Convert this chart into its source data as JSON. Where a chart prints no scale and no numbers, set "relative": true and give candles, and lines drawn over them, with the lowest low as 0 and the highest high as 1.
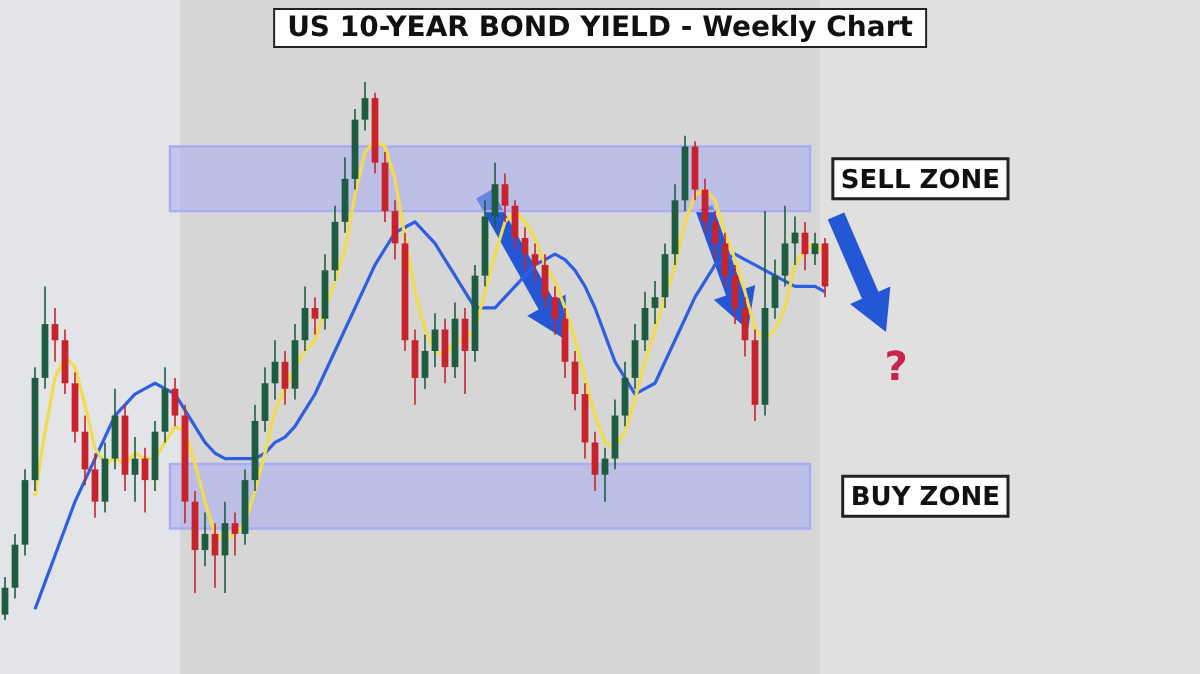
{
  "chart_data": {
    "type": "candlestick",
    "title": "US 10-YEAR BOND YIELD - Weekly Chart",
    "relative": true,
    "categories": [
      null,
      null,
      null,
      null,
      null,
      null,
      null,
      null,
      null,
      null,
      null,
      null,
      null,
      null,
      null,
      null,
      null,
      null,
      null,
      null,
      null,
      null,
      null,
      null,
      null,
      null,
      null,
      null,
      null,
      null,
      null,
      null,
      null,
      null,
      null,
      null,
      null,
      null,
      null,
      null,
      null,
      null,
      null,
      null,
      null,
      null,
      null,
      null,
      null,
      null,
      null,
      null,
      null,
      null,
      null,
      null,
      null,
      null,
      null,
      null,
      null,
      null,
      null,
      null,
      null,
      null,
      null,
      null,
      null,
      null,
      null,
      null,
      null,
      null,
      null,
      null,
      null,
      null,
      null,
      null,
      null,
      null,
      null,
      null,
      null,
      null,
      null,
      null,
      null,
      null,
      null,
      null,
      null,
      null,
      null,
      null,
      null,
      null,
      null,
      null,
      null,
      null,
      null,
      null,
      null,
      null,
      null,
      null,
      null,
      null,
      null,
      null,
      null,
      null,
      null,
      null
    ],
    "ohlc": [
      [
        0.01,
        0.08,
        0.0,
        0.06
      ],
      [
        0.06,
        0.16,
        0.04,
        0.14
      ],
      [
        0.14,
        0.28,
        0.12,
        0.26
      ],
      [
        0.26,
        0.47,
        0.24,
        0.45
      ],
      [
        0.45,
        0.62,
        0.43,
        0.55
      ],
      [
        0.55,
        0.58,
        0.48,
        0.52
      ],
      [
        0.52,
        0.54,
        0.42,
        0.44
      ],
      [
        0.44,
        0.46,
        0.33,
        0.35
      ],
      [
        0.35,
        0.38,
        0.25,
        0.28
      ],
      [
        0.28,
        0.31,
        0.19,
        0.22
      ],
      [
        0.22,
        0.33,
        0.2,
        0.3
      ],
      [
        0.3,
        0.43,
        0.28,
        0.38
      ],
      [
        0.38,
        0.4,
        0.24,
        0.27
      ],
      [
        0.27,
        0.34,
        0.22,
        0.3
      ],
      [
        0.3,
        0.32,
        0.2,
        0.26
      ],
      [
        0.26,
        0.37,
        0.24,
        0.35
      ],
      [
        0.35,
        0.47,
        0.33,
        0.43
      ],
      [
        0.43,
        0.45,
        0.36,
        0.38
      ],
      [
        0.38,
        0.4,
        0.18,
        0.22
      ],
      [
        0.22,
        0.24,
        0.05,
        0.13
      ],
      [
        0.13,
        0.2,
        0.1,
        0.16
      ],
      [
        0.16,
        0.18,
        0.06,
        0.12
      ],
      [
        0.12,
        0.22,
        0.05,
        0.18
      ],
      [
        0.18,
        0.2,
        0.12,
        0.16
      ],
      [
        0.16,
        0.28,
        0.14,
        0.26
      ],
      [
        0.26,
        0.4,
        0.24,
        0.37
      ],
      [
        0.37,
        0.47,
        0.35,
        0.44
      ],
      [
        0.44,
        0.52,
        0.41,
        0.48
      ],
      [
        0.48,
        0.5,
        0.4,
        0.43
      ],
      [
        0.43,
        0.55,
        0.41,
        0.52
      ],
      [
        0.52,
        0.62,
        0.5,
        0.58
      ],
      [
        0.58,
        0.6,
        0.53,
        0.56
      ],
      [
        0.56,
        0.68,
        0.54,
        0.65
      ],
      [
        0.65,
        0.77,
        0.63,
        0.74
      ],
      [
        0.74,
        0.86,
        0.72,
        0.82
      ],
      [
        0.82,
        0.95,
        0.8,
        0.93
      ],
      [
        0.93,
        1.0,
        0.91,
        0.97
      ],
      [
        0.97,
        0.98,
        0.83,
        0.85
      ],
      [
        0.85,
        0.87,
        0.74,
        0.76
      ],
      [
        0.76,
        0.78,
        0.67,
        0.7
      ],
      [
        0.7,
        0.72,
        0.5,
        0.52
      ],
      [
        0.52,
        0.54,
        0.4,
        0.45
      ],
      [
        0.45,
        0.53,
        0.43,
        0.5
      ],
      [
        0.5,
        0.57,
        0.47,
        0.54
      ],
      [
        0.54,
        0.56,
        0.44,
        0.47
      ],
      [
        0.47,
        0.59,
        0.45,
        0.56
      ],
      [
        0.56,
        0.58,
        0.42,
        0.5
      ],
      [
        0.5,
        0.66,
        0.48,
        0.64
      ],
      [
        0.64,
        0.78,
        0.62,
        0.75
      ],
      [
        0.75,
        0.85,
        0.73,
        0.81
      ],
      [
        0.81,
        0.83,
        0.74,
        0.77
      ],
      [
        0.77,
        0.78,
        0.69,
        0.71
      ],
      [
        0.71,
        0.73,
        0.65,
        0.68
      ],
      [
        0.68,
        0.7,
        0.63,
        0.66
      ],
      [
        0.66,
        0.68,
        0.58,
        0.6
      ],
      [
        0.6,
        0.62,
        0.53,
        0.56
      ],
      [
        0.56,
        0.58,
        0.45,
        0.48
      ],
      [
        0.48,
        0.5,
        0.39,
        0.42
      ],
      [
        0.42,
        0.44,
        0.3,
        0.33
      ],
      [
        0.33,
        0.35,
        0.24,
        0.27
      ],
      [
        0.27,
        0.32,
        0.22,
        0.3
      ],
      [
        0.3,
        0.41,
        0.28,
        0.38
      ],
      [
        0.38,
        0.48,
        0.36,
        0.45
      ],
      [
        0.45,
        0.55,
        0.43,
        0.52
      ],
      [
        0.52,
        0.61,
        0.5,
        0.58
      ],
      [
        0.58,
        0.63,
        0.55,
        0.6
      ],
      [
        0.6,
        0.7,
        0.58,
        0.68
      ],
      [
        0.68,
        0.81,
        0.66,
        0.78
      ],
      [
        0.78,
        0.9,
        0.76,
        0.88
      ],
      [
        0.88,
        0.89,
        0.78,
        0.8
      ],
      [
        0.8,
        0.82,
        0.72,
        0.74
      ],
      [
        0.74,
        0.76,
        0.67,
        0.7
      ],
      [
        0.7,
        0.72,
        0.62,
        0.64
      ],
      [
        0.64,
        0.66,
        0.55,
        0.58
      ],
      [
        0.58,
        0.6,
        0.49,
        0.52
      ],
      [
        0.52,
        0.54,
        0.37,
        0.4
      ],
      [
        0.4,
        0.76,
        0.38,
        0.58
      ],
      [
        0.58,
        0.67,
        0.56,
        0.64
      ],
      [
        0.64,
        0.77,
        0.62,
        0.7
      ],
      [
        0.7,
        0.75,
        0.66,
        0.72
      ],
      [
        0.72,
        0.74,
        0.65,
        0.68
      ],
      [
        0.68,
        0.72,
        0.66,
        0.7
      ],
      [
        0.7,
        0.71,
        0.6,
        0.62
      ],
      null,
      null,
      null,
      null,
      null,
      null,
      null,
      null,
      null,
      null,
      null,
      null,
      null,
      null,
      null,
      null,
      null,
      null,
      null,
      null,
      null,
      null,
      null,
      null,
      null,
      null,
      null,
      null,
      null,
      null,
      null,
      null,
      null
    ],
    "series": [
      {
        "type": "line",
        "color": "#f2dc4c",
        "values": [
          null,
          null,
          null,
          0.23,
          0.35,
          0.45,
          0.49,
          0.47,
          0.4,
          0.32,
          0.29,
          0.3,
          0.29,
          0.31,
          0.3,
          0.3,
          0.33,
          0.36,
          0.35,
          0.29,
          0.22,
          0.16,
          0.15,
          0.16,
          0.18,
          0.24,
          0.31,
          0.39,
          0.43,
          0.47,
          0.5,
          0.52,
          0.58,
          0.63,
          0.69,
          0.79,
          0.87,
          0.89,
          0.88,
          0.82,
          0.71,
          0.61,
          0.54,
          0.5,
          0.49,
          0.52,
          0.52,
          0.54,
          0.61,
          0.68,
          0.74,
          0.76,
          0.74,
          0.71,
          0.66,
          0.63,
          0.58,
          0.52,
          0.45,
          0.38,
          0.33,
          0.32,
          0.35,
          0.41,
          0.48,
          0.54,
          0.6,
          0.66,
          0.74,
          0.79,
          0.8,
          0.78,
          0.72,
          0.67,
          0.61,
          0.54,
          0.52,
          0.54,
          0.58,
          0.66,
          0.69,
          0.7,
          0.68,
          null,
          null,
          null,
          null,
          null,
          null,
          null,
          null,
          null,
          null,
          null,
          null,
          null,
          null,
          null,
          null,
          null,
          null,
          null,
          null,
          null,
          null,
          null,
          null,
          null,
          null,
          null,
          null,
          null,
          null,
          null,
          null,
          null
        ]
      },
      {
        "type": "line",
        "color": "#2f5fe0",
        "values": [
          null,
          null,
          null,
          0.02,
          0.07,
          0.12,
          0.17,
          0.22,
          0.26,
          0.3,
          0.34,
          0.38,
          0.4,
          0.42,
          0.43,
          0.44,
          0.43,
          0.42,
          0.39,
          0.36,
          0.33,
          0.31,
          0.3,
          0.3,
          0.3,
          0.3,
          0.31,
          0.33,
          0.34,
          0.36,
          0.39,
          0.42,
          0.46,
          0.5,
          0.54,
          0.58,
          0.62,
          0.66,
          0.69,
          0.72,
          0.73,
          0.74,
          0.72,
          0.7,
          0.67,
          0.64,
          0.61,
          0.58,
          0.58,
          0.58,
          0.6,
          0.62,
          0.64,
          0.66,
          0.67,
          0.68,
          0.67,
          0.65,
          0.62,
          0.58,
          0.53,
          0.48,
          0.45,
          0.42,
          0.43,
          0.44,
          0.48,
          0.52,
          0.56,
          0.6,
          0.63,
          0.66,
          0.67,
          0.68,
          0.67,
          0.66,
          0.65,
          0.64,
          0.63,
          0.62,
          0.62,
          0.62,
          0.61,
          null,
          null,
          null,
          null,
          null,
          null,
          null,
          null,
          null,
          null,
          null,
          null,
          null,
          null,
          null,
          null,
          null,
          null,
          null,
          null,
          null,
          null,
          null,
          null,
          null,
          null,
          null,
          null,
          null,
          null,
          null,
          null,
          null
        ]
      }
    ],
    "bands": [
      {
        "axis": "y",
        "from": 0.76,
        "to": 0.88,
        "label": "SELL ZONE",
        "color": "#a9acf2"
      },
      {
        "axis": "y",
        "from": 0.17,
        "to": 0.29,
        "label": "BUY ZONE",
        "color": "#a9acf2"
      }
    ],
    "annotations": [
      "?"
    ]
  }
}
